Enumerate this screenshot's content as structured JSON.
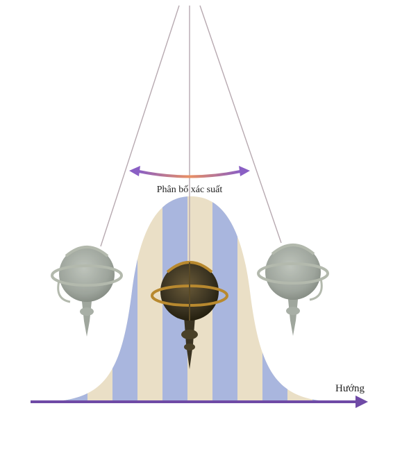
{
  "labels": {
    "distribution": "Phân bố xác suất",
    "direction": "Hướng"
  },
  "colors": {
    "stripe_blue": "#a9b6de",
    "stripe_beige": "#eadfc6",
    "arrow_purple": "#6f4aa6",
    "arrow_orange": "#e98f63",
    "string": "#b7a9b0",
    "bob_center": "#3e3a26",
    "bob_side": "#8f978c",
    "brass_ring": "#b8892f"
  },
  "icons": {
    "center_bob": "pendulum-bob-icon",
    "left_bob": "pendulum-bob-faded-icon",
    "right_bob": "pendulum-bob-faded-icon"
  }
}
